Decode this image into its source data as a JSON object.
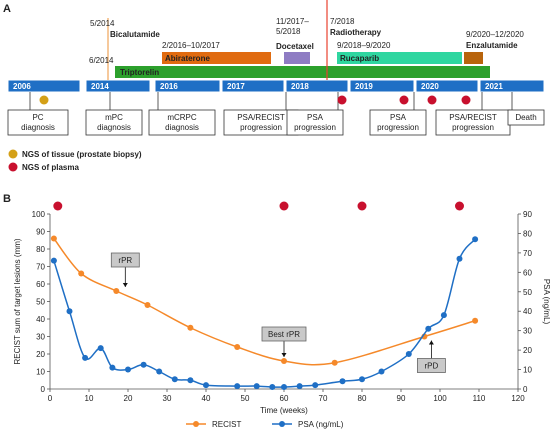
{
  "chart_data": [
    {
      "type": "timeline",
      "panel_label": "A",
      "years": [
        "2006",
        "2014",
        "2016",
        "2017",
        "2018",
        "2019",
        "2020",
        "2021"
      ],
      "therapies": [
        {
          "label": "Bicalutamide",
          "date": "5/2014",
          "kind": "line",
          "color": "#f0a55a"
        },
        {
          "label": "Triptorelin",
          "date": "6/2014",
          "kind": "bar",
          "color": "#2ca02c"
        },
        {
          "label": "Abiraterone",
          "date": "2/2016–10/2017",
          "kind": "bar",
          "color": "#e06b10"
        },
        {
          "label": "Docetaxel",
          "date": "11/2017–\n5/2018",
          "kind": "bar",
          "color": "#8e7cc3"
        },
        {
          "label": "Radiotherapy",
          "date": "7/2018",
          "kind": "line",
          "color": "#e8412e"
        },
        {
          "label": "Rucaparib",
          "date": "9/2018–9/2020",
          "kind": "bar",
          "color": "#2fd6a0"
        },
        {
          "label": "Enzalutamide",
          "date": "9/2020–12/2020",
          "kind": "bar",
          "color": "#b8640c"
        }
      ],
      "events": [
        {
          "label": "PC\ndiagnosis",
          "ngs": "tissue"
        },
        {
          "label": "mPC\ndiagnosis",
          "ngs": ""
        },
        {
          "label": "mCRPC\ndiagnosis",
          "ngs": ""
        },
        {
          "label": "PSA/RECIST\nprogression",
          "ngs": ""
        },
        {
          "label": "PSA\nprogression",
          "ngs": "plasma"
        },
        {
          "label": "PSA\nprogression",
          "ngs": "plasma"
        },
        {
          "label": "PSA/RECIST\nprogression",
          "ngs": "plasma"
        },
        {
          "label": "Death",
          "ngs": ""
        }
      ],
      "extra_plasma_marks": 1,
      "legend": [
        {
          "label": "NGS of tissue (prostate biopsy)",
          "color": "#d4a017"
        },
        {
          "label": "NGS of plasma",
          "color": "#c8102e"
        }
      ]
    },
    {
      "type": "line",
      "panel_label": "B",
      "xlabel": "Time (weeks)",
      "ylabel_left": "RECIST sum of target lesions (mm)",
      "ylabel_right": "PSA (ng/mL)",
      "xlim": [
        0,
        120
      ],
      "ylim_left": [
        0,
        100
      ],
      "ylim_right": [
        0,
        90
      ],
      "x_ticks": [
        0,
        10,
        20,
        30,
        40,
        50,
        60,
        70,
        80,
        90,
        100,
        110,
        120
      ],
      "y_ticks_left": [
        0,
        10,
        20,
        30,
        40,
        50,
        60,
        70,
        80,
        90,
        100
      ],
      "y_ticks_right": [
        0,
        10,
        20,
        30,
        40,
        50,
        60,
        70,
        80,
        90
      ],
      "series": [
        {
          "name": "RECIST",
          "axis": "left",
          "color": "#f5892a",
          "points": [
            [
              1,
              86
            ],
            [
              8,
              66
            ],
            [
              17,
              56
            ],
            [
              25,
              48
            ],
            [
              36,
              35
            ],
            [
              48,
              24
            ],
            [
              60,
              16
            ],
            [
              73,
              15
            ],
            [
              96,
              30
            ],
            [
              109,
              39
            ]
          ]
        },
        {
          "name": "PSA (ng/mL)",
          "axis": "right",
          "color": "#1f6fc5",
          "points": [
            [
              1,
              66
            ],
            [
              5,
              40
            ],
            [
              9,
              16
            ],
            [
              13,
              21
            ],
            [
              16,
              11
            ],
            [
              20,
              10
            ],
            [
              24,
              12.5
            ],
            [
              28,
              9
            ],
            [
              32,
              5
            ],
            [
              36,
              4.5
            ],
            [
              40,
              2
            ],
            [
              48,
              1.5
            ],
            [
              53,
              1.5
            ],
            [
              57,
              1
            ],
            [
              60,
              1
            ],
            [
              64,
              1.5
            ],
            [
              68,
              2
            ],
            [
              75,
              4
            ],
            [
              80,
              5
            ],
            [
              85,
              9
            ],
            [
              92,
              18
            ],
            [
              97,
              31
            ],
            [
              101,
              38
            ],
            [
              105,
              67
            ],
            [
              109,
              77
            ]
          ]
        }
      ],
      "plasma_ngs_weeks": [
        2,
        60,
        80,
        105
      ],
      "annotations": [
        {
          "label": "rPR",
          "x": 17,
          "y": 56,
          "placement": "above"
        },
        {
          "label": "Best rPR",
          "x": 60,
          "y": 16,
          "placement": "above"
        },
        {
          "label": "rPD",
          "x": 96,
          "y": 30,
          "placement": "below"
        }
      ]
    }
  ]
}
